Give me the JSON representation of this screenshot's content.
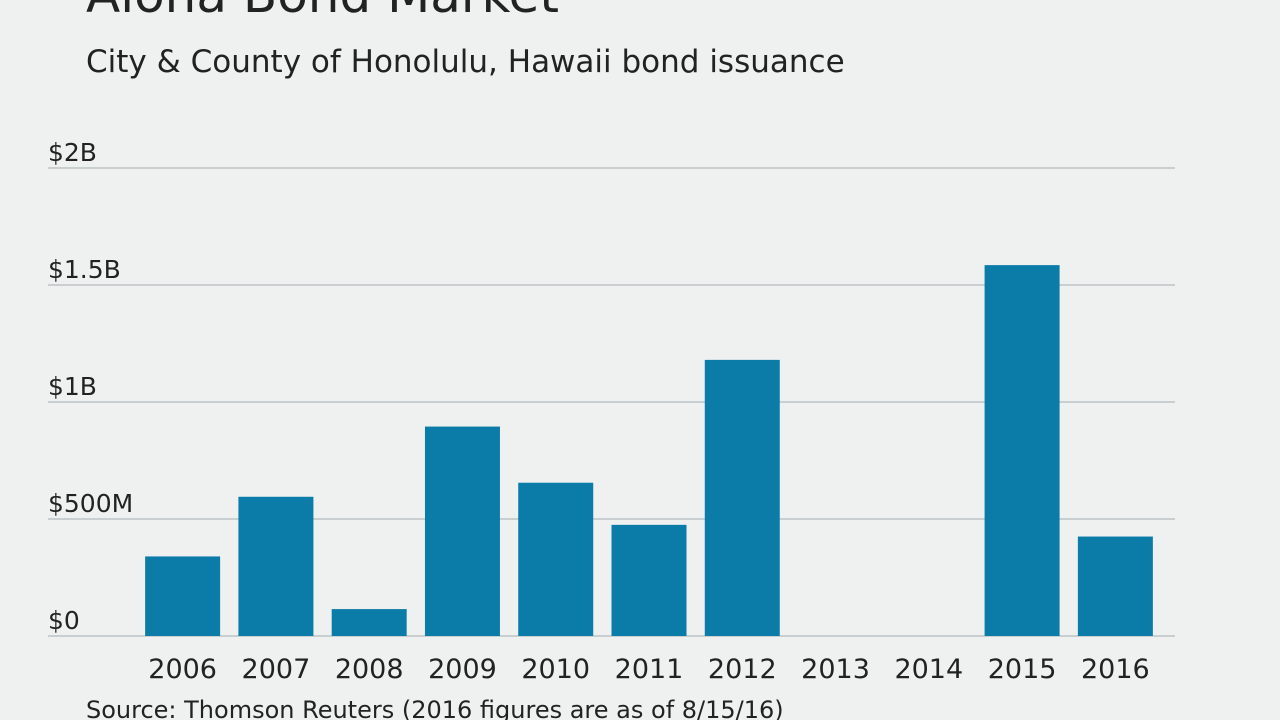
{
  "chart_data": {
    "type": "bar",
    "title": "Aloha Bond Market",
    "subtitle": "City & County of Honolulu, Hawaii bond issuance",
    "source": "Source: Thomson Reuters (2016 figures are as of 8/15/16)",
    "categories": [
      "2006",
      "2007",
      "2008",
      "2009",
      "2010",
      "2011",
      "2012",
      "2013",
      "2014",
      "2015",
      "2016"
    ],
    "values": [
      340000000,
      595000000,
      115000000,
      895000000,
      655000000,
      475000000,
      1180000000,
      0,
      0,
      1585000000,
      425000000
    ],
    "color": "#0b7ba8",
    "ylim": [
      0,
      2000000000
    ],
    "yticks": [
      {
        "value": 0,
        "label": "$0"
      },
      {
        "value": 500000000,
        "label": "$500M"
      },
      {
        "value": 1000000000,
        "label": "$1B"
      },
      {
        "value": 1500000000,
        "label": "$1.5B"
      },
      {
        "value": 2000000000,
        "label": "$2B"
      }
    ],
    "grid": true
  }
}
